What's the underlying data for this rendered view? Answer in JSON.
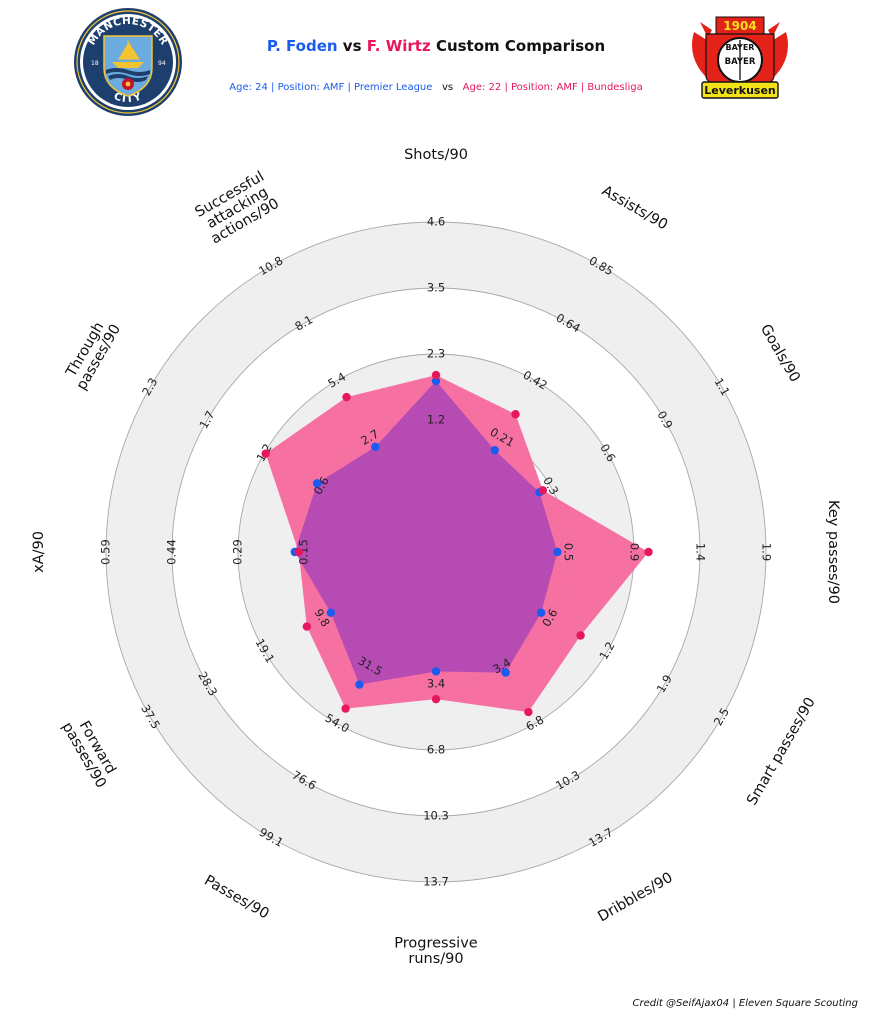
{
  "header": {
    "player1": "P. Foden",
    "vs": "vs",
    "player2": "F. Wirtz",
    "title_suffix": "Custom Comparison",
    "sub1": "Age: 24 | Position: AMF | Premier League",
    "sub_vs": "vs",
    "sub2": "Age: 22 | Position: AMF | Bundesliga"
  },
  "logos": {
    "left": {
      "icon": "manchester-city-crest-icon",
      "text_top": "MANCHESTER",
      "text_bottom": "CITY",
      "left_num": "18",
      "right_num": "94",
      "ring": "#1c3f6e",
      "field": "#6cabdd"
    },
    "right": {
      "icon": "bayer-leverkusen-crest-icon",
      "year": "1904",
      "brand_top": "BAYER",
      "brand_bottom": "BAYER",
      "banner": "Leverkusen",
      "red": "#e32219",
      "yellow": "#f4e219"
    }
  },
  "credit": "Credit @SeifAjax04 | Eleven Square Scouting",
  "colors": {
    "player1": "#1a5cf0",
    "player2": "#e8175d",
    "player2_fill": "#f5699c",
    "overlap_fill": "#9b3dbb",
    "ring_fill": "#efefef",
    "ring_line": "#a8a8a8"
  },
  "chart_data": {
    "type": "radar",
    "title": "P. Foden vs F. Wirtz Custom Comparison",
    "legend": "none",
    "grid": true,
    "axes": [
      {
        "label": "Shots/90",
        "min": 0,
        "max": 4.6,
        "ticks": [
          "1.2",
          "2.3",
          "3.5",
          "4.6"
        ]
      },
      {
        "label": "Assists/90",
        "min": 0,
        "max": 0.85,
        "ticks": [
          "0.21",
          "0.42",
          "0.64",
          "0.85"
        ]
      },
      {
        "label": "Goals/90",
        "min": 0,
        "max": 1.1,
        "ticks": [
          "0.3",
          "0.6",
          "0.9",
          "1.1"
        ]
      },
      {
        "label": "Key passes/90",
        "min": 0,
        "max": 1.9,
        "ticks": [
          "0.5",
          "0.9",
          "1.4",
          "1.9"
        ]
      },
      {
        "label": "Smart passes/90",
        "min": 0,
        "max": 2.5,
        "ticks": [
          "0.6",
          "1.2",
          "1.9",
          "2.5"
        ]
      },
      {
        "label": "Dribbles/90",
        "min": 0,
        "max": 13.7,
        "ticks": [
          "3.4",
          "6.8",
          "10.3",
          "13.7"
        ]
      },
      {
        "label": "Progressive\nruns/90",
        "min": 0,
        "max": 13.7,
        "ticks": [
          "3.4",
          "6.8",
          "10.3",
          "13.7"
        ]
      },
      {
        "label": "Passes/90",
        "min": 0,
        "max": 99.1,
        "ticks": [
          "31.5",
          "54.0",
          "76.6",
          "99.1"
        ]
      },
      {
        "label": "Forward\npasses/90",
        "min": 0,
        "max": 37.5,
        "ticks": [
          "9.8",
          "19.1",
          "28.3",
          "37.5"
        ]
      },
      {
        "label": "xA/90",
        "min": 0,
        "max": 0.59,
        "ticks": [
          "0.15",
          "0.29",
          "0.44",
          "0.59"
        ]
      },
      {
        "label": "Through\npasses/90",
        "min": 0,
        "max": 2.3,
        "ticks": [
          "0.6",
          "1.2",
          "1.7",
          "2.3"
        ]
      },
      {
        "label": "Successful\nattacking\nactions/90",
        "min": 0,
        "max": 10.8,
        "ticks": [
          "2.7",
          "5.4",
          "8.1",
          "10.8"
        ]
      }
    ],
    "series": [
      {
        "name": "P. Foden",
        "values": [
          0.53,
          0.26,
          0.27,
          0.28,
          0.28,
          0.37,
          0.27,
          0.44,
          0.28,
          0.38,
          0.36,
          0.28
        ]
      },
      {
        "name": "F. Wirtz",
        "values": [
          0.56,
          0.47,
          0.29,
          0.74,
          0.51,
          0.6,
          0.41,
          0.58,
          0.42,
          0.36,
          0.66,
          0.57
        ]
      }
    ]
  }
}
